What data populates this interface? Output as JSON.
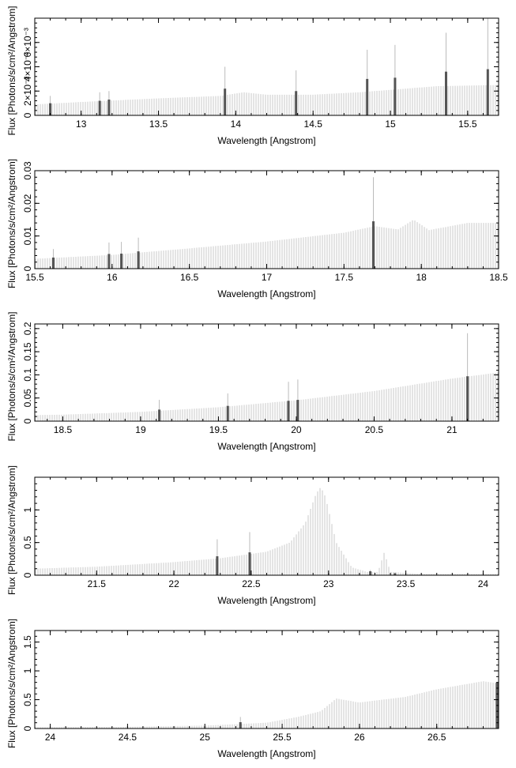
{
  "chart_data": [
    {
      "type": "bar",
      "xlabel": "Wavelength [Angstrom]",
      "ylabel": "Flux [Photons/s/cm²/Angstrom]",
      "xlim": [
        12.7,
        15.7
      ],
      "ylim": [
        0,
        0.008
      ],
      "x_ticks": [
        13,
        13.5,
        14,
        14.5,
        15,
        15.5
      ],
      "x_tick_labels": [
        "13",
        "13.5",
        "14",
        "14.5",
        "15",
        "15.5"
      ],
      "y_ticks": [
        0,
        0.002,
        0.004,
        0.006
      ],
      "y_tick_labels": [
        "0",
        "2×10⁻³",
        "4×10⁻³",
        "6×10⁻³"
      ],
      "continuum": [
        [
          12.7,
          0.0009
        ],
        [
          13.0,
          0.0011
        ],
        [
          13.5,
          0.0014
        ],
        [
          13.9,
          0.0016
        ],
        [
          14.05,
          0.0019
        ],
        [
          14.2,
          0.0017
        ],
        [
          14.5,
          0.0017
        ],
        [
          14.8,
          0.0019
        ],
        [
          15.0,
          0.0021
        ],
        [
          15.3,
          0.0024
        ],
        [
          15.7,
          0.0025
        ]
      ],
      "lines": [
        {
          "x": 12.8,
          "y": 0.001,
          "err": 0.0016
        },
        {
          "x": 13.12,
          "y": 0.0012,
          "err": 0.0019
        },
        {
          "x": 13.18,
          "y": 0.0013,
          "err": 0.002
        },
        {
          "x": 13.93,
          "y": 0.0022,
          "err": 0.004
        },
        {
          "x": 14.39,
          "y": 0.002,
          "err": 0.0037
        },
        {
          "x": 14.85,
          "y": 0.003,
          "err": 0.0054
        },
        {
          "x": 15.03,
          "y": 0.0031,
          "err": 0.0058
        },
        {
          "x": 15.36,
          "y": 0.0036,
          "err": 0.0068
        },
        {
          "x": 15.63,
          "y": 0.0038,
          "err": 0.008
        }
      ]
    },
    {
      "type": "bar",
      "xlabel": "Wavelength [Angstrom]",
      "ylabel": "Flux [Photons/s/cm²/Angstrom]",
      "xlim": [
        15.5,
        18.5
      ],
      "ylim": [
        0,
        0.03
      ],
      "x_ticks": [
        15.5,
        16,
        16.5,
        17,
        17.5,
        18,
        18.5
      ],
      "x_tick_labels": [
        "15.5",
        "16",
        "16.5",
        "17",
        "17.5",
        "18",
        "18.5"
      ],
      "y_ticks": [
        0,
        0.01,
        0.02,
        0.03
      ],
      "y_tick_labels": [
        "0",
        "0.01",
        "0.02",
        "0.03"
      ],
      "continuum": [
        [
          15.5,
          0.003
        ],
        [
          16.0,
          0.0042
        ],
        [
          16.5,
          0.0062
        ],
        [
          17.0,
          0.0083
        ],
        [
          17.5,
          0.011
        ],
        [
          17.7,
          0.013
        ],
        [
          17.85,
          0.012
        ],
        [
          17.95,
          0.015
        ],
        [
          18.05,
          0.0118
        ],
        [
          18.3,
          0.014
        ],
        [
          18.5,
          0.014
        ]
      ],
      "lines": [
        {
          "x": 15.62,
          "y": 0.0034,
          "err": 0.006
        },
        {
          "x": 15.98,
          "y": 0.0045,
          "err": 0.008
        },
        {
          "x": 16.06,
          "y": 0.0046,
          "err": 0.0082
        },
        {
          "x": 16.17,
          "y": 0.0053,
          "err": 0.0095
        },
        {
          "x": 17.69,
          "y": 0.0145,
          "err": 0.028
        }
      ]
    },
    {
      "type": "bar",
      "xlabel": "Wavelength [Angstrom]",
      "ylabel": "Flux [Photons/s/cm²/Angstrom]",
      "xlim": [
        18.32,
        21.3
      ],
      "ylim": [
        0,
        0.21
      ],
      "x_ticks": [
        18.5,
        19,
        19.5,
        20,
        20.5,
        21
      ],
      "x_tick_labels": [
        "18.5",
        "19",
        "19.5",
        "20",
        "20.5",
        "21"
      ],
      "y_ticks": [
        0,
        0.05,
        0.1,
        0.15,
        0.2
      ],
      "y_tick_labels": [
        "0",
        "0.05",
        "0.1",
        "0.15",
        "0.2"
      ],
      "continuum": [
        [
          18.32,
          0.013
        ],
        [
          18.5,
          0.014
        ],
        [
          19.0,
          0.02
        ],
        [
          19.5,
          0.03
        ],
        [
          20.0,
          0.045
        ],
        [
          20.5,
          0.065
        ],
        [
          21.0,
          0.092
        ],
        [
          21.3,
          0.105
        ]
      ],
      "lines": [
        {
          "x": 19.12,
          "y": 0.025,
          "err": 0.046
        },
        {
          "x": 19.56,
          "y": 0.033,
          "err": 0.06
        },
        {
          "x": 19.95,
          "y": 0.044,
          "err": 0.085
        },
        {
          "x": 20.01,
          "y": 0.046,
          "err": 0.09
        },
        {
          "x": 21.1,
          "y": 0.097,
          "err": 0.19
        }
      ]
    },
    {
      "type": "bar",
      "xlabel": "Wavelength [Angstrom]",
      "ylabel": "Flux [Photons/s/cm²/Angstrom]",
      "xlim": [
        21.1,
        24.1
      ],
      "ylim": [
        0,
        1.5
      ],
      "x_ticks": [
        21.5,
        22,
        22.5,
        23,
        23.5,
        24
      ],
      "x_tick_labels": [
        "21.5",
        "22",
        "22.5",
        "23",
        "23.5",
        "24"
      ],
      "y_ticks": [
        0,
        0.5,
        1
      ],
      "y_tick_labels": [
        "0",
        "0.5",
        "1"
      ],
      "continuum": [
        [
          21.1,
          0.1
        ],
        [
          21.5,
          0.13
        ],
        [
          22.0,
          0.2
        ],
        [
          22.3,
          0.26
        ],
        [
          22.6,
          0.36
        ],
        [
          22.75,
          0.5
        ],
        [
          22.85,
          0.8
        ],
        [
          22.92,
          1.25
        ],
        [
          22.95,
          1.35
        ],
        [
          22.98,
          1.2
        ],
        [
          23.05,
          0.5
        ],
        [
          23.15,
          0.12
        ],
        [
          23.25,
          0.05
        ],
        [
          23.32,
          0.05
        ],
        [
          23.36,
          0.35
        ],
        [
          23.4,
          0.05
        ],
        [
          23.6,
          0.02
        ],
        [
          24.1,
          0.02
        ]
      ],
      "lines": [
        {
          "x": 22.28,
          "y": 0.29,
          "err": 0.55
        },
        {
          "x": 22.49,
          "y": 0.35,
          "err": 0.66
        },
        {
          "x": 23.27,
          "y": 0.06,
          "err": 0.08
        },
        {
          "x": 23.43,
          "y": 0.03,
          "err": 0.04
        }
      ]
    },
    {
      "type": "bar",
      "xlabel": "Wavelength [Angstrom]",
      "ylabel": "Flux [Photons/s/cm²/Angstrom]",
      "xlim": [
        23.9,
        26.9
      ],
      "ylim": [
        0,
        1.7
      ],
      "x_ticks": [
        24,
        24.5,
        25,
        25.5,
        26,
        26.5
      ],
      "x_tick_labels": [
        "24",
        "24.5",
        "25",
        "25.5",
        "26",
        "26.5"
      ],
      "y_ticks": [
        0,
        0.5,
        1,
        1.5
      ],
      "y_tick_labels": [
        "0",
        "0.5",
        "1",
        "1.5"
      ],
      "continuum": [
        [
          23.9,
          0.02
        ],
        [
          24.5,
          0.03
        ],
        [
          25.0,
          0.05
        ],
        [
          25.4,
          0.1
        ],
        [
          25.6,
          0.2
        ],
        [
          25.75,
          0.3
        ],
        [
          25.85,
          0.52
        ],
        [
          26.0,
          0.45
        ],
        [
          26.3,
          0.55
        ],
        [
          26.5,
          0.68
        ],
        [
          26.8,
          0.82
        ],
        [
          26.9,
          0.78
        ]
      ],
      "lines": [
        {
          "x": 25.23,
          "y": 0.11,
          "err": 0.2
        },
        {
          "x": 26.89,
          "y": 0.8,
          "err": 0.8
        }
      ]
    }
  ]
}
